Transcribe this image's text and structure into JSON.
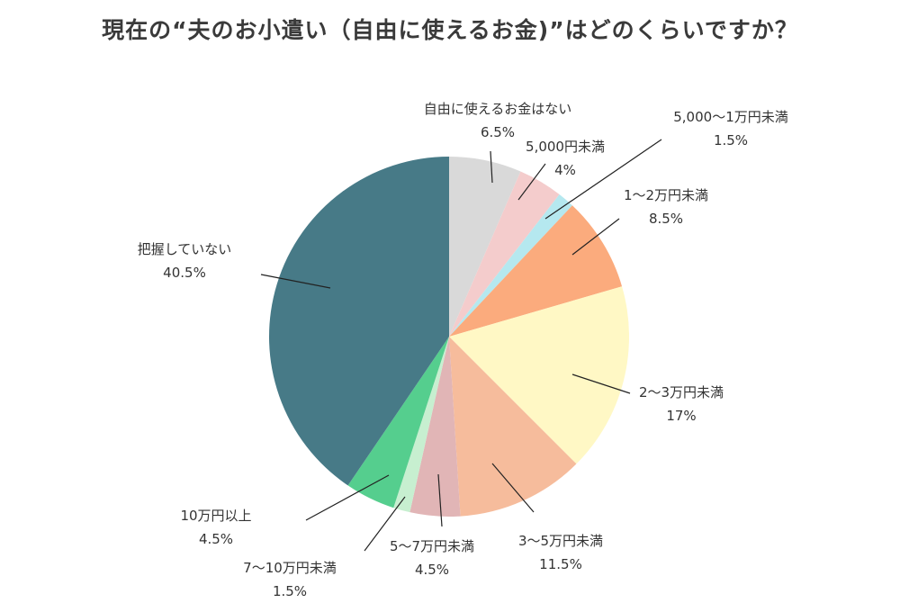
{
  "chart_data": {
    "type": "pie",
    "title": "現在の“夫のお小遣い（自由に使えるお金)”はどのくらいですか？",
    "start": "top",
    "direction": "clockwise",
    "slices": [
      {
        "label": "自由に使えるお金はない",
        "value": 6.5,
        "pct_label": "6.5%",
        "color": "#d9d9d9"
      },
      {
        "label": "5,000円未満",
        "value": 4,
        "pct_label": "4%",
        "color": "#f4cccc"
      },
      {
        "label": "5,000〜1万円未満",
        "value": 1.5,
        "pct_label": "1.5%",
        "color": "#b5e8ef"
      },
      {
        "label": "1〜2万円未満",
        "value": 8.5,
        "pct_label": "8.5%",
        "color": "#fbab7d"
      },
      {
        "label": "2〜3万円未満",
        "value": 17,
        "pct_label": "17%",
        "color": "#fff8c5"
      },
      {
        "label": "3〜5万円未満",
        "value": 11.5,
        "pct_label": "11.5%",
        "color": "#f6bc9c"
      },
      {
        "label": "5〜7万円未満",
        "value": 4.5,
        "pct_label": "4.5%",
        "color": "#e1b5b6"
      },
      {
        "label": "7〜10万円未満",
        "value": 1.5,
        "pct_label": "1.5%",
        "color": "#c7efd0"
      },
      {
        "label": "10万円以上",
        "value": 4.5,
        "pct_label": "4.5%",
        "color": "#55ce8e"
      },
      {
        "label": "把握していない",
        "value": 40.5,
        "pct_label": "40.5%",
        "color": "#477a87"
      }
    ]
  }
}
